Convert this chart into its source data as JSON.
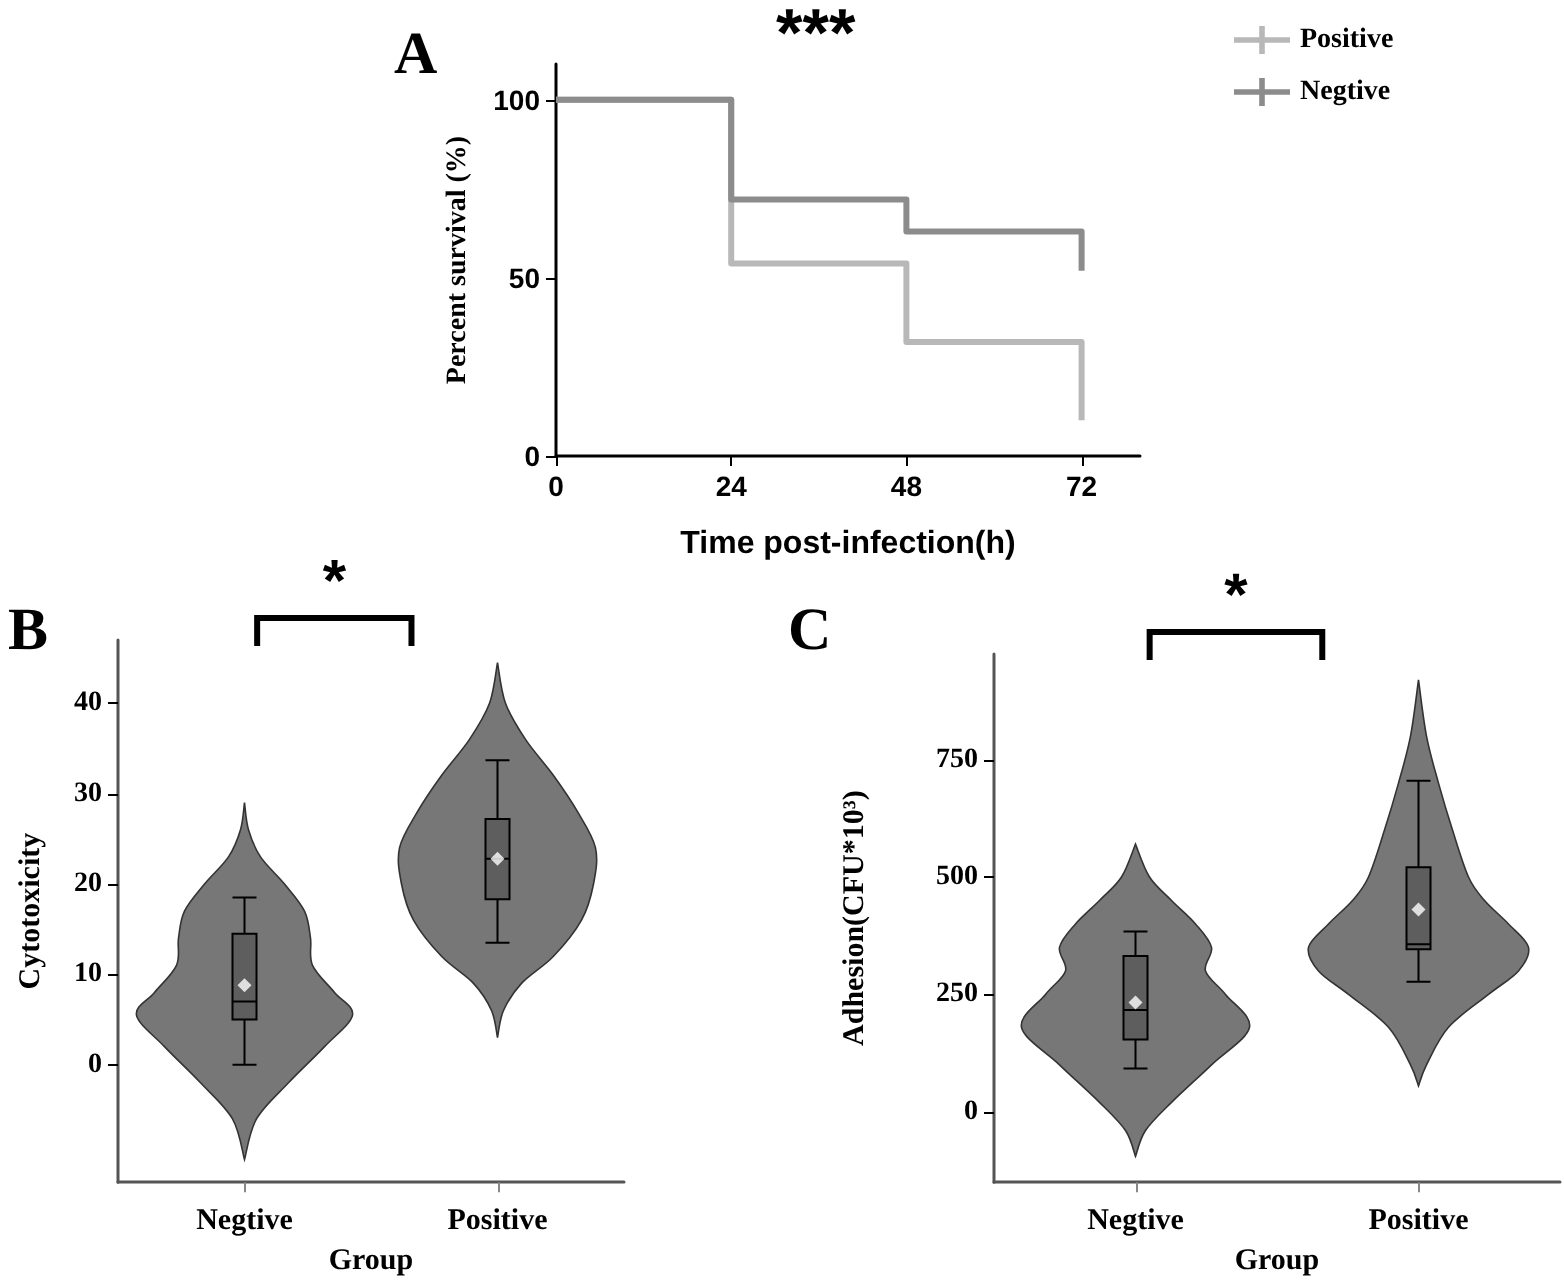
{
  "chart_data": [
    {
      "type": "step",
      "annotations": [
        "A",
        "***"
      ],
      "xlabel": "Time post-infection(h)",
      "ylabel": "Percent survival (%)",
      "x": [
        0,
        24,
        48,
        72
      ],
      "xlim": [
        0,
        80
      ],
      "xticks": [
        0,
        24,
        48,
        72
      ],
      "ylim": [
        0,
        110
      ],
      "yticks": [
        0,
        50,
        100
      ],
      "legend": "right",
      "series": [
        {
          "name": "Positive",
          "color": "#b8b8b8",
          "values": [
            100,
            54,
            32,
            10
          ]
        },
        {
          "name": "Negtive",
          "color": "#8c8c8c",
          "values": [
            100,
            72,
            63,
            52
          ]
        }
      ]
    },
    {
      "type": "box",
      "annotations": [
        "B",
        "*"
      ],
      "xlabel": "Group",
      "ylabel": "Cytotoxicity",
      "categories": [
        "Negtive",
        "Positive"
      ],
      "ylim": [
        -13,
        47
      ],
      "yticks": [
        0,
        10,
        20,
        30,
        40
      ],
      "color": "#5e5e5e",
      "marker": "diamond",
      "boxes": [
        {
          "low": 0,
          "q1": 5,
          "median": 7,
          "q3": 14.5,
          "high": 18.5,
          "mean": 8.8
        },
        {
          "low": 13.5,
          "q1": 18.3,
          "median": 22.8,
          "q3": 27.2,
          "high": 33.7,
          "mean": 22.8
        }
      ]
    },
    {
      "type": "box",
      "annotations": [
        "C",
        "*"
      ],
      "xlabel": "Group",
      "ylabel": "Adhesion(CFU*10³)",
      "categories": [
        "Negtive",
        "Positive"
      ],
      "ylim": [
        -150,
        975
      ],
      "yticks": [
        0,
        250,
        500,
        750
      ],
      "color": "#5e5e5e",
      "marker": "diamond",
      "boxes": [
        {
          "low": 92,
          "q1": 154,
          "median": 217,
          "q3": 332,
          "high": 384,
          "mean": 233
        },
        {
          "low": 277,
          "q1": 346,
          "median": 357,
          "q3": 521,
          "high": 705,
          "mean": 431
        }
      ]
    }
  ]
}
